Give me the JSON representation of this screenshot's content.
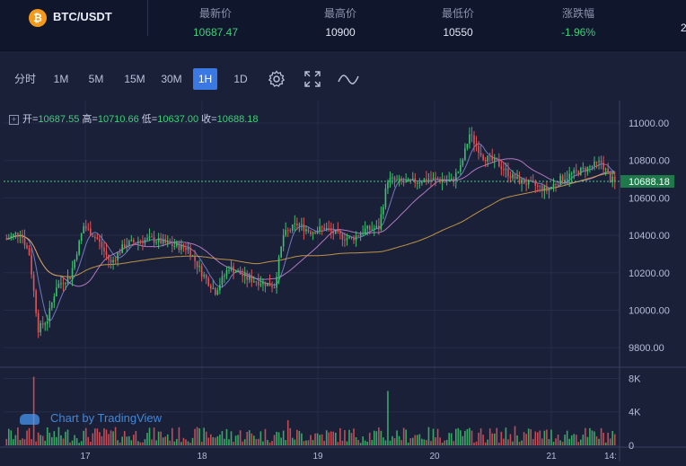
{
  "header": {
    "coin_icon": "₿",
    "pair": "BTC/USDT",
    "stats": [
      {
        "label": "最新价",
        "value": "10687.47",
        "color": "green"
      },
      {
        "label": "最高价",
        "value": "10900",
        "color": "normal"
      },
      {
        "label": "最低价",
        "value": "10550",
        "color": "normal"
      },
      {
        "label": "涨跌幅",
        "value": "-1.96%",
        "color": "green"
      }
    ],
    "extra": "2"
  },
  "toolbar": {
    "intervals": [
      "分时",
      "1M",
      "5M",
      "15M",
      "30M",
      "1H",
      "1D"
    ],
    "active": "1H",
    "icons": [
      "settings-icon",
      "fullscreen-icon",
      "indicator-icon"
    ]
  },
  "ohlc": {
    "open_label": "开=",
    "open": "10687.55",
    "high_label": "高=",
    "high": "10710.66",
    "low_label": "低=",
    "low": "10637.00",
    "close_label": "收=",
    "close": "10688.18"
  },
  "watermark": "Chart by TradingView",
  "colors": {
    "up": "#3fbf6f",
    "down": "#e0555a",
    "ma1": "#7e8bd6",
    "ma2": "#c987d8",
    "ma3": "#d9a84a",
    "last": "#3fcf7a"
  },
  "chart_data": {
    "type": "candlestick",
    "price_axis_ticks": [
      "11000.00",
      "10800.00",
      "10600.00",
      "10400.00",
      "10200.00",
      "10000.00",
      "9800.00"
    ],
    "price_ylim": [
      9700,
      11120
    ],
    "volume_axis_ticks": [
      "8K",
      "4K",
      "0"
    ],
    "x_ticks": [
      "17",
      "18",
      "19",
      "20",
      "21",
      "14:"
    ],
    "last_price_label": "10688.18",
    "last_price": 10688.18,
    "checkpoints": [
      [
        0,
        10380
      ],
      [
        6,
        10420
      ],
      [
        10,
        10300
      ],
      [
        14,
        9900
      ],
      [
        18,
        9950
      ],
      [
        22,
        10130
      ],
      [
        28,
        10180
      ],
      [
        34,
        10450
      ],
      [
        40,
        10380
      ],
      [
        46,
        10250
      ],
      [
        52,
        10350
      ],
      [
        58,
        10370
      ],
      [
        64,
        10380
      ],
      [
        72,
        10350
      ],
      [
        80,
        10330
      ],
      [
        86,
        10200
      ],
      [
        92,
        10100
      ],
      [
        98,
        10230
      ],
      [
        106,
        10170
      ],
      [
        112,
        10150
      ],
      [
        118,
        10130
      ],
      [
        122,
        10400
      ],
      [
        128,
        10460
      ],
      [
        134,
        10420
      ],
      [
        140,
        10440
      ],
      [
        146,
        10400
      ],
      [
        152,
        10380
      ],
      [
        158,
        10430
      ],
      [
        164,
        10440
      ],
      [
        168,
        10700
      ],
      [
        176,
        10680
      ],
      [
        186,
        10700
      ],
      [
        196,
        10690
      ],
      [
        200,
        10760
      ],
      [
        204,
        10940
      ],
      [
        210,
        10820
      ],
      [
        216,
        10790
      ],
      [
        222,
        10720
      ],
      [
        226,
        10690
      ],
      [
        232,
        10670
      ],
      [
        238,
        10640
      ],
      [
        244,
        10700
      ],
      [
        250,
        10730
      ],
      [
        256,
        10760
      ],
      [
        262,
        10790
      ],
      [
        266,
        10700
      ],
      [
        268,
        10688
      ]
    ],
    "volume_spikes": {
      "12": 8200,
      "124": 3000,
      "168": 6500,
      "224": 2300
    }
  }
}
